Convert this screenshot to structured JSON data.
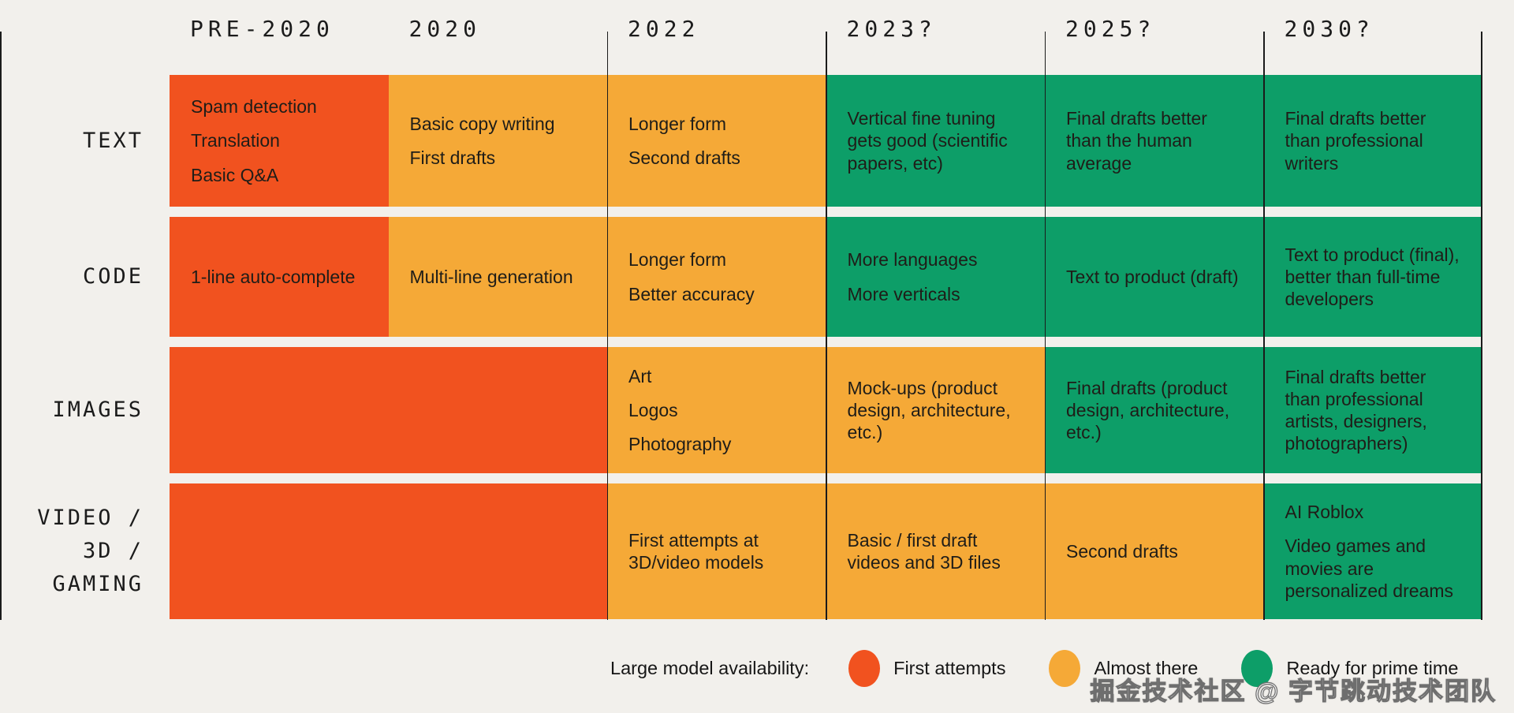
{
  "background": "#F2F0EC",
  "watermark": "掘金技术社区 @ 字节跳动技术团队",
  "chart_data": {
    "type": "table",
    "title": "",
    "columns": [
      "PRE-2020",
      "2020",
      "2022",
      "2023?",
      "2025?",
      "2030?"
    ],
    "status_colors": {
      "first_attempts": "#F1521F",
      "almost_there": "#F5A937",
      "ready_for_prime_time": "#0D9E68"
    },
    "rows": [
      {
        "label_lines": [
          "TEXT"
        ],
        "cells": [
          {
            "status": "first_attempts",
            "items": [
              "Spam detection",
              "Translation",
              "Basic Q&A"
            ]
          },
          {
            "status": "almost_there",
            "items": [
              "Basic copy writing",
              "First drafts"
            ]
          },
          {
            "status": "almost_there",
            "items": [
              "Longer form",
              "Second drafts"
            ]
          },
          {
            "status": "ready_for_prime_time",
            "items": [
              "Vertical fine tuning gets good (scientific papers, etc)"
            ]
          },
          {
            "status": "ready_for_prime_time",
            "items": [
              "Final drafts better than the human average"
            ]
          },
          {
            "status": "ready_for_prime_time",
            "items": [
              "Final drafts better than professional writers"
            ]
          }
        ]
      },
      {
        "label_lines": [
          "CODE"
        ],
        "cells": [
          {
            "status": "first_attempts",
            "items": [
              "1-line auto-complete"
            ]
          },
          {
            "status": "almost_there",
            "items": [
              "Multi-line generation"
            ]
          },
          {
            "status": "almost_there",
            "items": [
              "Longer form",
              "Better accuracy"
            ]
          },
          {
            "status": "ready_for_prime_time",
            "items": [
              "More languages",
              "More verticals"
            ]
          },
          {
            "status": "ready_for_prime_time",
            "items": [
              "Text to product (draft)"
            ]
          },
          {
            "status": "ready_for_prime_time",
            "items": [
              "Text to product (final), better than full-time developers"
            ]
          }
        ]
      },
      {
        "label_lines": [
          "IMAGES"
        ],
        "cells": [
          {
            "status": "first_attempts",
            "items": []
          },
          {
            "status": "first_attempts",
            "items": []
          },
          {
            "status": "almost_there",
            "items": [
              "Art",
              "Logos",
              "Photography"
            ]
          },
          {
            "status": "almost_there",
            "items": [
              "Mock-ups (product design, architecture, etc.)"
            ]
          },
          {
            "status": "ready_for_prime_time",
            "items": [
              "Final drafts (product design, architecture, etc.)"
            ]
          },
          {
            "status": "ready_for_prime_time",
            "items": [
              "Final drafts better than professional artists, designers, photographers)"
            ]
          }
        ]
      },
      {
        "label_lines": [
          "VIDEO /",
          "3D /",
          "GAMING"
        ],
        "cells": [
          {
            "status": "first_attempts",
            "items": []
          },
          {
            "status": "first_attempts",
            "items": []
          },
          {
            "status": "almost_there",
            "items": [
              "First attempts at 3D/video models"
            ]
          },
          {
            "status": "almost_there",
            "items": [
              "Basic / first draft videos and 3D files"
            ]
          },
          {
            "status": "almost_there",
            "items": [
              "Second drafts"
            ]
          },
          {
            "status": "ready_for_prime_time",
            "items": [
              "AI Roblox",
              "Video games and movies are personalized dreams"
            ]
          }
        ]
      }
    ],
    "legend": {
      "title": "Large model availability:",
      "entries": [
        {
          "status": "first_attempts",
          "label": "First attempts"
        },
        {
          "status": "almost_there",
          "label": "Almost there"
        },
        {
          "status": "ready_for_prime_time",
          "label": "Ready for prime time"
        }
      ]
    },
    "layout": {
      "grid": "off",
      "legend_position": "bottom"
    }
  }
}
